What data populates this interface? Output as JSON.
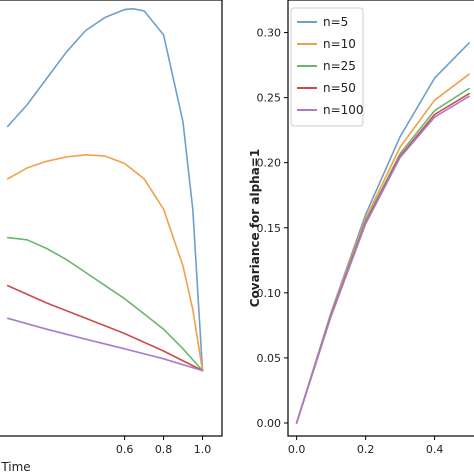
{
  "chart_data": [
    {
      "type": "line",
      "title": "",
      "xlabel": "Time",
      "ylabel": "",
      "xlim": [
        -0.05,
        1.1
      ],
      "ylim": [
        0.0,
        1.0
      ],
      "xticks": [
        0.6,
        0.8,
        1.0
      ],
      "xtick_labels": [
        "0.6",
        "0.8",
        "1.0"
      ],
      "grid": false,
      "series": [
        {
          "name": "n=5",
          "color": "#6f9fc8",
          "x": [
            0.0,
            0.1,
            0.2,
            0.3,
            0.4,
            0.5,
            0.6,
            0.64,
            0.7,
            0.8,
            0.9,
            0.95,
            1.0
          ],
          "y": [
            0.71,
            0.76,
            0.82,
            0.88,
            0.93,
            0.96,
            0.978,
            0.98,
            0.975,
            0.92,
            0.72,
            0.52,
            0.15
          ]
        },
        {
          "name": "n=10",
          "color": "#f0a04a",
          "x": [
            0.0,
            0.1,
            0.2,
            0.3,
            0.4,
            0.5,
            0.6,
            0.7,
            0.8,
            0.9,
            0.95,
            1.0
          ],
          "y": [
            0.59,
            0.615,
            0.63,
            0.64,
            0.645,
            0.642,
            0.625,
            0.59,
            0.52,
            0.39,
            0.29,
            0.15
          ]
        },
        {
          "name": "n=25",
          "color": "#6db56d",
          "x": [
            0.0,
            0.1,
            0.2,
            0.3,
            0.4,
            0.5,
            0.6,
            0.7,
            0.8,
            0.9,
            1.0
          ],
          "y": [
            0.455,
            0.45,
            0.43,
            0.405,
            0.375,
            0.345,
            0.315,
            0.28,
            0.245,
            0.2,
            0.15
          ]
        },
        {
          "name": "n=50",
          "color": "#cc4c4c",
          "x": [
            0.0,
            0.2,
            0.4,
            0.6,
            0.8,
            1.0
          ],
          "y": [
            0.345,
            0.305,
            0.27,
            0.235,
            0.195,
            0.15
          ]
        },
        {
          "name": "n=100",
          "color": "#a97cc4",
          "x": [
            0.0,
            0.2,
            0.4,
            0.6,
            0.8,
            1.0
          ],
          "y": [
            0.27,
            0.245,
            0.222,
            0.2,
            0.177,
            0.15
          ]
        }
      ]
    },
    {
      "type": "line",
      "title": "",
      "xlabel": "",
      "ylabel": "Covariance for alpha=1",
      "xlim": [
        -0.025,
        0.52
      ],
      "ylim": [
        -0.01,
        0.325
      ],
      "xticks": [
        0.0,
        0.2,
        0.4
      ],
      "xtick_labels": [
        "0.0",
        "0.2",
        "0.4"
      ],
      "yticks": [
        0.0,
        0.05,
        0.1,
        0.15,
        0.2,
        0.25,
        0.3
      ],
      "ytick_labels": [
        "0.00",
        "0.05",
        "0.10",
        "0.15",
        "0.20",
        "0.25",
        "0.30"
      ],
      "grid": false,
      "legend": "top-left",
      "series": [
        {
          "name": "n=5",
          "color": "#6f9fc8",
          "x": [
            0.0,
            0.1,
            0.2,
            0.3,
            0.4,
            0.5
          ],
          "y": [
            0.0,
            0.085,
            0.16,
            0.22,
            0.265,
            0.292
          ]
        },
        {
          "name": "n=10",
          "color": "#f0a04a",
          "x": [
            0.0,
            0.1,
            0.2,
            0.3,
            0.4,
            0.5
          ],
          "y": [
            0.0,
            0.084,
            0.157,
            0.212,
            0.248,
            0.268
          ]
        },
        {
          "name": "n=25",
          "color": "#6db56d",
          "x": [
            0.0,
            0.1,
            0.2,
            0.3,
            0.4,
            0.5
          ],
          "y": [
            0.0,
            0.083,
            0.155,
            0.207,
            0.24,
            0.257
          ]
        },
        {
          "name": "n=50",
          "color": "#cc4c4c",
          "x": [
            0.0,
            0.1,
            0.2,
            0.3,
            0.4,
            0.5
          ],
          "y": [
            0.0,
            0.083,
            0.154,
            0.205,
            0.237,
            0.253
          ]
        },
        {
          "name": "n=100",
          "color": "#a97cc4",
          "x": [
            0.0,
            0.1,
            0.2,
            0.3,
            0.4,
            0.5
          ],
          "y": [
            0.0,
            0.082,
            0.153,
            0.204,
            0.235,
            0.251
          ]
        }
      ]
    }
  ]
}
